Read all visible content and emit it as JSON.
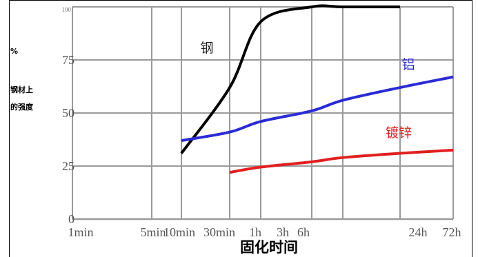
{
  "chart_data": {
    "type": "line",
    "title": "",
    "xlabel": "固化时间",
    "ylabel_unit": "%",
    "ylabel_lines": [
      "钢材上",
      "的强度"
    ],
    "ylim": [
      0,
      100
    ],
    "x_ticks": [
      "1min",
      "5min",
      "10min",
      "30min",
      "1h",
      "3h",
      "6h",
      "24h",
      "72h"
    ],
    "y_ticks": [
      "0",
      "25",
      "50",
      "75",
      "100"
    ],
    "grid": true,
    "series": [
      {
        "name": "钢",
        "color": "#000000",
        "x": [
          "10min",
          "30min",
          "1h",
          "3h",
          "6h",
          "24h"
        ],
        "y": [
          31,
          62,
          93,
          100,
          100,
          100
        ]
      },
      {
        "name": "铝",
        "color": "#2b2bd6",
        "x": [
          "10min",
          "30min",
          "1h",
          "3h",
          "6h",
          "24h",
          "72h"
        ],
        "y": [
          37,
          41,
          46,
          51,
          56,
          62,
          67
        ]
      },
      {
        "name": "镀锌",
        "color": "#e02020",
        "x": [
          "30min",
          "1h",
          "3h",
          "6h",
          "24h",
          "72h"
        ],
        "y": [
          22,
          24.5,
          27,
          29,
          31,
          32.5
        ]
      }
    ]
  }
}
